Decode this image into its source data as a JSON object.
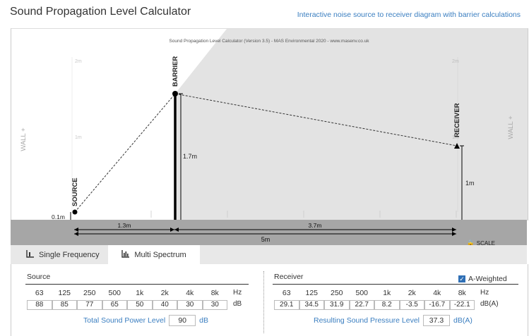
{
  "header": {
    "title": "Sound Propagation Level Calculator",
    "subtitle": "Interactive noise source to receiver diagram with barrier calculations"
  },
  "diagram": {
    "credit": "Sound Propagation Level Calculator (Version 3.5) - MAS Environmental 2020 - www.masenv.co.uk",
    "wall_left": "WALL +",
    "wall_right": "WALL +",
    "grid_2m_left": "2m",
    "grid_1m_left": "1m",
    "grid_2m_right": "2m",
    "grid_1m_right": "1m",
    "source_label": "SOURCE",
    "barrier_label": "BARRIER",
    "receiver_label": "RECEIVER",
    "source_height": "0.1m",
    "barrier_height": "1.7m",
    "receiver_height": "1m",
    "dist_source_barrier": "1.3m",
    "dist_barrier_receiver": "3.7m",
    "dist_total": "5m",
    "scale_label": "SCALE"
  },
  "tabs": {
    "single": "Single Frequency",
    "multi": "Multi Spectrum"
  },
  "source": {
    "title": "Source",
    "freqs": [
      "63",
      "125",
      "250",
      "500",
      "1k",
      "2k",
      "4k",
      "8k"
    ],
    "freq_unit": "Hz",
    "values": [
      "88",
      "85",
      "77",
      "65",
      "50",
      "40",
      "30",
      "30"
    ],
    "value_unit": "dB",
    "total_label": "Total Sound Power Level",
    "total_value": "90",
    "total_unit": "dB"
  },
  "receiver": {
    "title": "Receiver",
    "a_weighted": "A-Weighted",
    "freqs": [
      "63",
      "125",
      "250",
      "500",
      "1k",
      "2k",
      "4k",
      "8k"
    ],
    "freq_unit": "Hz",
    "values": [
      "29.1",
      "34.5",
      "31.9",
      "22.7",
      "8.2",
      "-3.5",
      "-16.7",
      "-22.1"
    ],
    "value_unit": "dB(A)",
    "total_label": "Resulting Sound Pressure Level",
    "total_value": "37.3",
    "total_unit": "dB(A)"
  },
  "colors": {
    "accent": "#3a7ec0",
    "shadow": "#e3e3e3",
    "ground": "#a6a6a6"
  }
}
